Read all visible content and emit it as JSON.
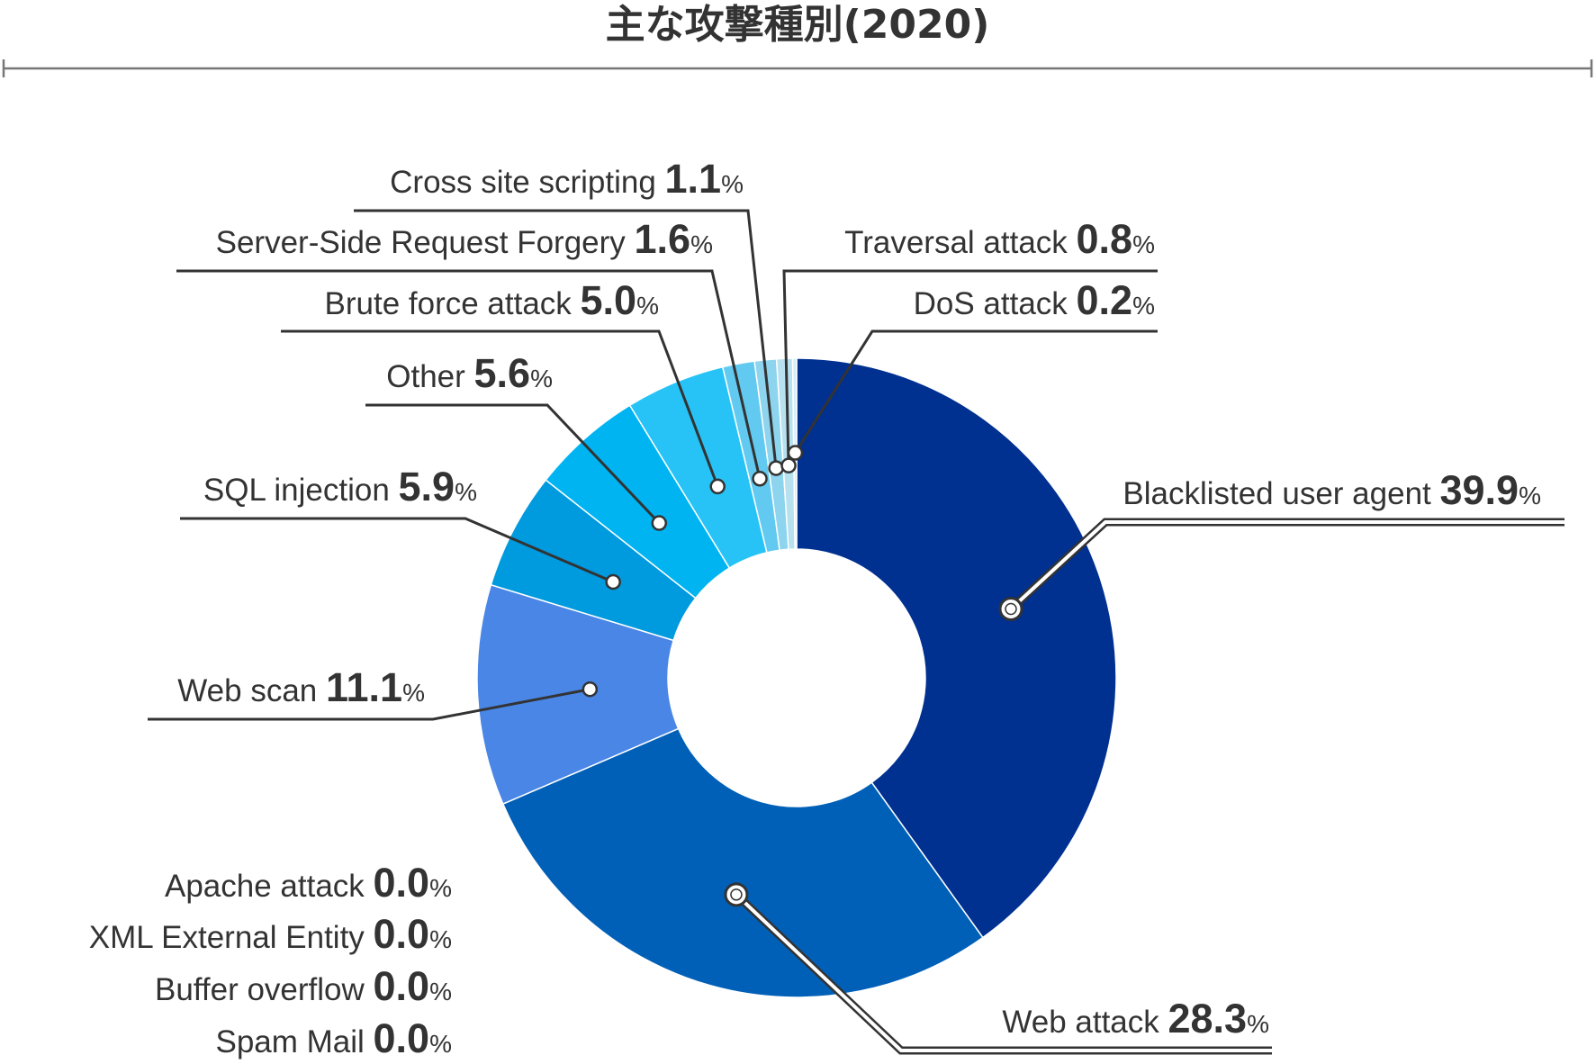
{
  "title": "主な攻撃種別(2020)",
  "colors": {
    "text": "#333333",
    "leader": "#333333",
    "slice_outline": "#ffffff"
  },
  "chart_data": {
    "type": "pie",
    "variant": "donut",
    "title": "主な攻撃種別(2020)",
    "unit": "%",
    "slices": [
      {
        "label": "Blacklisted user agent",
        "value": 39.9,
        "color": "#003090"
      },
      {
        "label": "Web attack",
        "value": 28.3,
        "color": "#0060b8"
      },
      {
        "label": "Web scan",
        "value": 11.1,
        "color": "#4a86e6"
      },
      {
        "label": "SQL injection",
        "value": 5.9,
        "color": "#009ade"
      },
      {
        "label": "Other",
        "value": 5.6,
        "color": "#00b4f2"
      },
      {
        "label": "Brute force attack",
        "value": 5.0,
        "color": "#27c3f6"
      },
      {
        "label": "Server-Side Request Forgery",
        "value": 1.6,
        "color": "#62caf0"
      },
      {
        "label": "Cross site scripting",
        "value": 1.1,
        "color": "#8dd4ee"
      },
      {
        "label": "Traversal attack",
        "value": 0.8,
        "color": "#b8e1f0"
      },
      {
        "label": "DoS attack",
        "value": 0.2,
        "color": "#d6eef7"
      },
      {
        "label": "Apache attack",
        "value": 0.0,
        "color": "#e6f3f9"
      },
      {
        "label": "XML External Entity",
        "value": 0.0,
        "color": "#e6f3f9"
      },
      {
        "label": "Buffer overflow",
        "value": 0.0,
        "color": "#e6f3f9"
      },
      {
        "label": "Spam Mail",
        "value": 0.0,
        "color": "#e6f3f9"
      }
    ],
    "labels": [
      {
        "name": "Blacklisted user agent",
        "number": "39.9",
        "pct": "%"
      },
      {
        "name": "Web attack",
        "number": "28.3",
        "pct": "%"
      },
      {
        "name": "Web scan",
        "number": "11.1",
        "pct": "%"
      },
      {
        "name": "SQL injection",
        "number": "5.9",
        "pct": "%"
      },
      {
        "name": "Other",
        "number": "5.6",
        "pct": "%"
      },
      {
        "name": "Brute force attack",
        "number": "5.0",
        "pct": "%"
      },
      {
        "name": "Server-Side Request Forgery",
        "number": "1.6",
        "pct": "%"
      },
      {
        "name": "Cross site scripting",
        "number": "1.1",
        "pct": "%"
      },
      {
        "name": "Traversal attack",
        "number": "0.8",
        "pct": "%"
      },
      {
        "name": "DoS attack",
        "number": "0.2",
        "pct": "%"
      },
      {
        "name": "Apache attack",
        "number": "0.0",
        "pct": "%"
      },
      {
        "name": "XML External Entity",
        "number": "0.0",
        "pct": "%"
      },
      {
        "name": "Buffer overflow",
        "number": "0.0",
        "pct": "%"
      },
      {
        "name": "Spam Mail",
        "number": "0.0",
        "pct": "%"
      }
    ]
  }
}
